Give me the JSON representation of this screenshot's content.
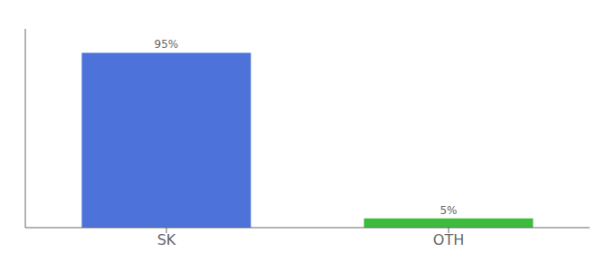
{
  "chart_data": {
    "type": "bar",
    "categories": [
      "SK",
      "OTH"
    ],
    "values": [
      95,
      5
    ],
    "value_labels": [
      "95%",
      "5%"
    ],
    "colors": [
      "#4d72d9",
      "#3dbb3d"
    ],
    "ylim": [
      0,
      108
    ],
    "data_labels": true,
    "tick_labels": "x",
    "grid": false
  }
}
